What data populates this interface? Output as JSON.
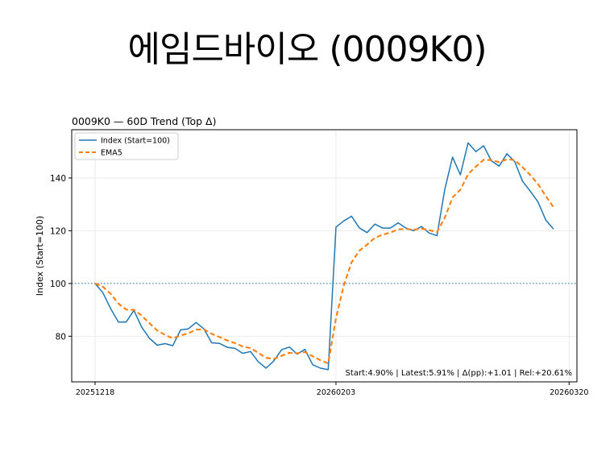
{
  "slide": {
    "title": "에임드바이오 (0009K0)"
  },
  "chart_data": {
    "type": "line",
    "title": "0009K0 — 60D Trend (Top Δ)",
    "ylabel": "Index (Start=100)",
    "xlabel": "",
    "ylim": [
      62.7,
      158.3
    ],
    "yticks": [
      80,
      100,
      120,
      140
    ],
    "xtick_labels": [
      "20251218",
      "20260203",
      "20260320"
    ],
    "xtick_positions": [
      0,
      31,
      61
    ],
    "grid": true,
    "legend_position": "top-left",
    "reference_line": {
      "y": 100,
      "style": "dotted",
      "color": "#1f77b4"
    },
    "annotation": "Start:4.90% | Latest:5.91% | Δ(pp):+1.01 | Rel:+20.61%",
    "series": [
      {
        "name": "Index (Start=100)",
        "color": "#1f77b4",
        "style": "solid",
        "values": [
          100.0,
          96.5,
          90.5,
          85.4,
          85.4,
          89.8,
          83.4,
          79.2,
          76.6,
          77.2,
          76.4,
          82.4,
          82.8,
          85.2,
          82.8,
          77.5,
          77.3,
          75.8,
          75.4,
          73.5,
          74.2,
          70.3,
          67.9,
          70.6,
          74.9,
          75.9,
          73.2,
          75.0,
          69.2,
          67.9,
          67.3,
          121.4,
          123.7,
          125.5,
          121.1,
          119.3,
          122.5,
          121.0,
          121.0,
          123.0,
          121.0,
          120.0,
          121.6,
          119.1,
          118.1,
          135.7,
          147.9,
          141.2,
          153.3,
          150.0,
          152.2,
          146.5,
          144.5,
          149.2,
          146.2,
          138.8,
          135.0,
          130.9,
          124.0,
          120.6
        ]
      },
      {
        "name": "EMA5",
        "color": "#ff7f0e",
        "style": "dashed",
        "values": [
          100.0,
          98.8,
          96.1,
          92.4,
          90.1,
          90.0,
          87.8,
          84.9,
          82.2,
          80.5,
          79.2,
          80.3,
          81.1,
          82.5,
          82.6,
          80.9,
          79.7,
          78.4,
          77.4,
          76.1,
          75.5,
          73.7,
          71.8,
          71.4,
          72.6,
          73.7,
          73.5,
          74.0,
          72.4,
          70.9,
          69.7,
          86.9,
          99.2,
          108.0,
          112.4,
          114.7,
          117.3,
          118.5,
          119.3,
          120.5,
          120.7,
          120.4,
          120.8,
          120.2,
          119.5,
          124.9,
          132.6,
          135.5,
          141.4,
          144.3,
          146.9,
          146.8,
          146.0,
          147.1,
          146.8,
          144.1,
          141.1,
          137.7,
          133.1,
          128.9
        ]
      }
    ]
  }
}
